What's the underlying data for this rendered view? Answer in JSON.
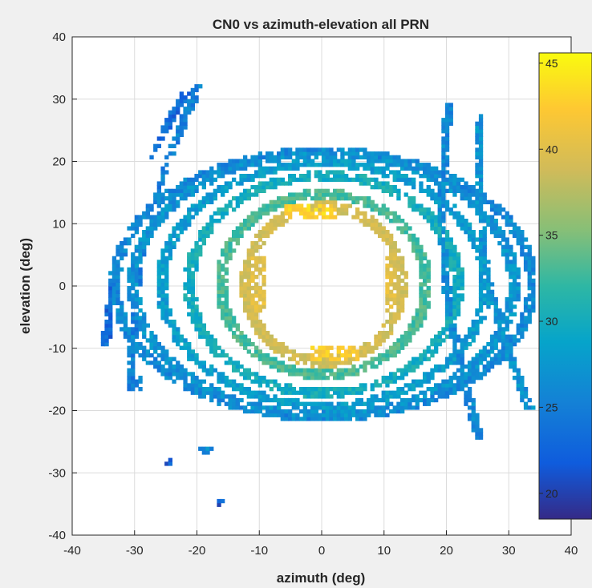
{
  "chart_data": {
    "type": "heatmap",
    "title": "CN0 vs azimuth-elevation all PRN",
    "xlabel": "azimuth (deg)",
    "ylabel": "elevation (deg)",
    "xlim": [
      -40,
      40
    ],
    "ylim": [
      -40,
      40
    ],
    "xticks": [
      "-40",
      "-30",
      "-20",
      "-10",
      "0",
      "10",
      "20",
      "30",
      "40"
    ],
    "yticks": [
      "-40",
      "-30",
      "-20",
      "-10",
      "0",
      "10",
      "20",
      "30",
      "40"
    ],
    "grid": true,
    "colormap": "parula",
    "colorbar": {
      "clim": [
        18.5,
        45.6
      ],
      "ticks": [
        "20",
        "25",
        "30",
        "35",
        "40",
        "45"
      ],
      "location": "right"
    },
    "pattern": {
      "description_free_values": true,
      "rings": [
        {
          "cx": 0,
          "a": 12.5,
          "b": 12.5,
          "cn0": 39,
          "spread": 2.0
        },
        {
          "cx": 0,
          "a": 16.5,
          "b": 14.5,
          "cn0": 33,
          "spread": 3.0
        },
        {
          "cx": 0,
          "a": 21.5,
          "b": 17.5,
          "cn0": 30,
          "spread": 3.5
        },
        {
          "cx": 0,
          "a": 26,
          "b": 19.5,
          "cn0": 28,
          "spread": 3.5
        },
        {
          "cx": 0,
          "a": 30.5,
          "b": 21,
          "cn0": 27,
          "spread": 4.0
        },
        {
          "cx": 0,
          "a": 33.5,
          "b": 21.5,
          "cn0": 26,
          "spread": 4.0
        }
      ],
      "arcs": [
        {
          "x1": -35,
          "y1": -10,
          "x2": -22,
          "y2": 31,
          "cn0": 23
        },
        {
          "x1": -31,
          "y1": -17,
          "x2": -20,
          "y2": 32,
          "cn0": 25
        },
        {
          "x1": -25,
          "y1": -28,
          "x2": -16,
          "y2": -35,
          "cn0": 22
        },
        {
          "x1": 20,
          "y1": 29,
          "x2": 25,
          "y2": -25,
          "cn0": 26
        },
        {
          "x1": 25,
          "y1": 27,
          "x2": 33,
          "y2": -20,
          "cn0": 27
        },
        {
          "x1": -30,
          "y1": -15,
          "x2": -18,
          "y2": -27,
          "cn0": 26
        }
      ],
      "hot_zones": [
        {
          "x": -2,
          "y": 11.5,
          "w": 8,
          "h": 2.5,
          "cn0": 43
        },
        {
          "x": 2,
          "y": -11,
          "w": 8,
          "h": 2.5,
          "cn0": 42
        },
        {
          "x": -10.5,
          "y": 0,
          "w": 2,
          "h": 9,
          "cn0": 40
        },
        {
          "x": 11,
          "y": 0,
          "w": 2,
          "h": 9,
          "cn0": 40
        }
      ]
    }
  }
}
